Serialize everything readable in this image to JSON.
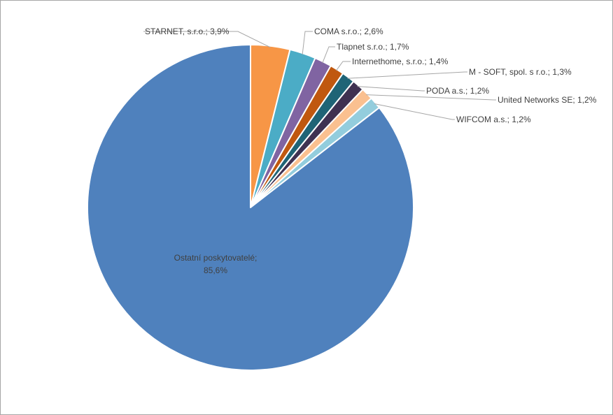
{
  "chart_data": {
    "type": "pie",
    "title": "",
    "slices": [
      {
        "name": "STARNET, s.r.o.",
        "value": 3.9,
        "label": "STARNET, s.r.o.; 3,9%",
        "color": "#F79646"
      },
      {
        "name": "COMA s.r.o.",
        "value": 2.6,
        "label": "COMA s.r.o.; 2,6%",
        "color": "#4BACC6"
      },
      {
        "name": "Tlapnet s.r.o.",
        "value": 1.7,
        "label": "Tlapnet s.r.o.; 1,7%",
        "color": "#8064A2"
      },
      {
        "name": "Internethome, s.r.o.",
        "value": 1.4,
        "label": "Internethome, s.r.o.; 1,4%",
        "color": "#C0580F"
      },
      {
        "name": "M - SOFT, spol. s r.o.",
        "value": 1.3,
        "label": "M - SOFT, spol. s r.o.; 1,3%",
        "color": "#1F6476"
      },
      {
        "name": "PODA a.s.",
        "value": 1.2,
        "label": "PODA a.s.; 1,2%",
        "color": "#3F3151"
      },
      {
        "name": "United Networks SE",
        "value": 1.2,
        "label": "United Networks SE; 1,2%",
        "color": "#FAC090"
      },
      {
        "name": "WIFCOM a.s.",
        "value": 1.2,
        "label": "WIFCOM a.s.; 1,2%",
        "color": "#93CDDD"
      },
      {
        "name": "Ostatní poskytovatelé",
        "value": 85.6,
        "label_lines": [
          "Ostatní poskytovatelé;",
          "85,6%"
        ],
        "color": "#4F81BD"
      }
    ]
  }
}
